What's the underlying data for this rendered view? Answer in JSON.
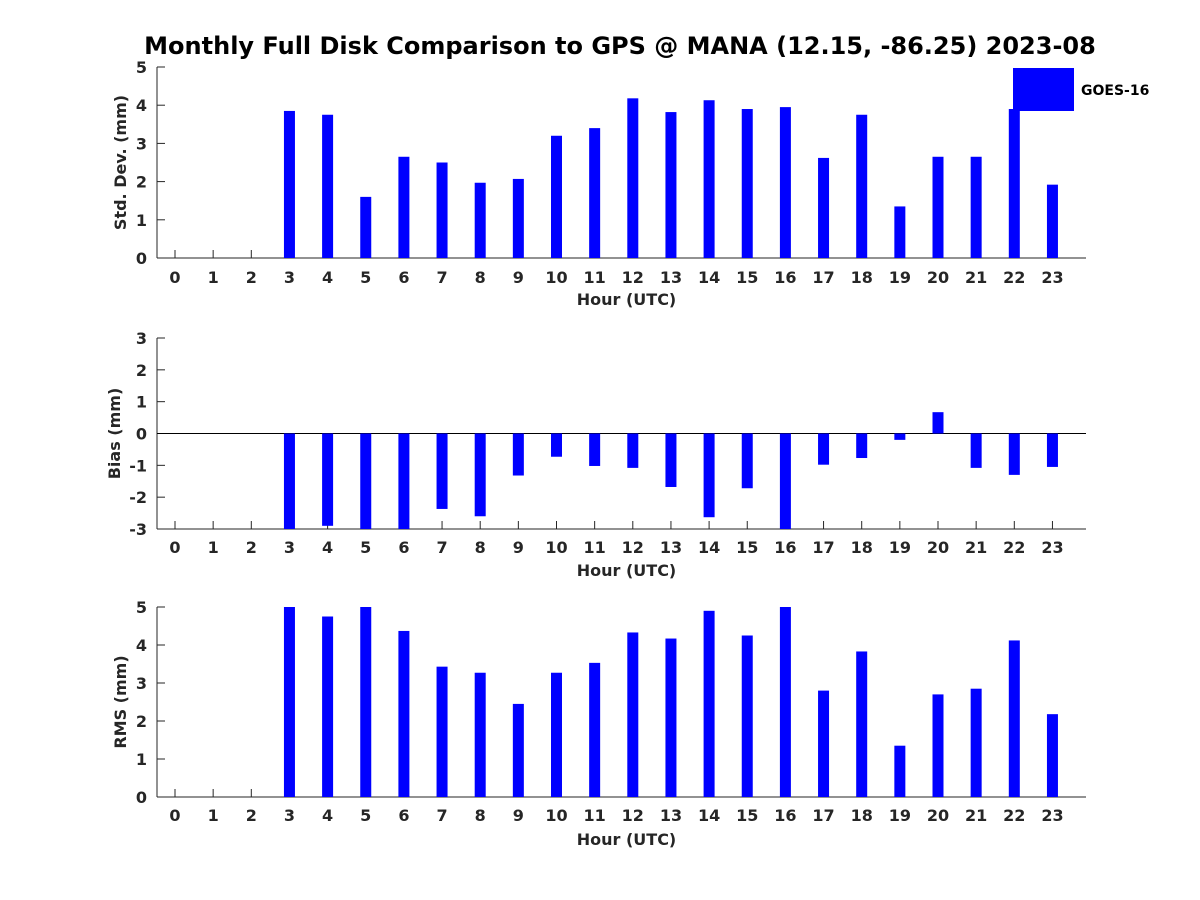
{
  "chart_data": {
    "title": "Monthly Full Disk Comparison to GPS @ MANA (12.15, -86.25) 2023-08",
    "legend": {
      "entries": [
        "GOES-16"
      ],
      "placement": "top-right"
    },
    "color": "#0000ff",
    "type": "bar",
    "panels": [
      {
        "type": "bar",
        "name": "std",
        "xlabel": "Hour (UTC)",
        "ylabel": "Std. Dev. (mm)",
        "ylim": [
          0,
          5
        ],
        "yticks": [
          "0",
          "1",
          "2",
          "3",
          "4",
          "5"
        ],
        "categories": [
          "0",
          "1",
          "2",
          "3",
          "4",
          "5",
          "6",
          "7",
          "8",
          "9",
          "10",
          "11",
          "12",
          "13",
          "14",
          "15",
          "16",
          "17",
          "18",
          "19",
          "20",
          "21",
          "22",
          "23"
        ],
        "series": [
          {
            "name": "GOES-16",
            "values": [
              null,
              null,
              null,
              3.85,
              3.75,
              1.6,
              2.65,
              2.5,
              1.97,
              2.07,
              3.2,
              3.4,
              4.18,
              3.82,
              4.13,
              3.9,
              3.95,
              2.62,
              3.75,
              1.35,
              2.65,
              2.65,
              3.9,
              1.92
            ]
          }
        ]
      },
      {
        "type": "bar",
        "name": "bias",
        "xlabel": "Hour (UTC)",
        "ylabel": "Bias (mm)",
        "ylim": [
          -3,
          3
        ],
        "yticks": [
          "-3",
          "-2",
          "-1",
          "0",
          "1",
          "2",
          "3"
        ],
        "zero_line": true,
        "categories": [
          "0",
          "1",
          "2",
          "3",
          "4",
          "5",
          "6",
          "7",
          "8",
          "9",
          "10",
          "11",
          "12",
          "13",
          "14",
          "15",
          "16",
          "17",
          "18",
          "19",
          "20",
          "21",
          "22",
          "23"
        ],
        "series": [
          {
            "name": "GOES-16",
            "values": [
              null,
              null,
              null,
              -3.0,
              -2.9,
              -3.0,
              -3.0,
              -2.37,
              -2.6,
              -1.32,
              -0.73,
              -1.02,
              -1.08,
              -1.68,
              -2.63,
              -1.72,
              -3.0,
              -0.98,
              -0.77,
              -0.2,
              0.67,
              -1.08,
              -1.3,
              -1.05
            ]
          }
        ]
      },
      {
        "type": "bar",
        "name": "rms",
        "xlabel": "Hour (UTC)",
        "ylabel": "RMS (mm)",
        "ylim": [
          0,
          5
        ],
        "yticks": [
          "0",
          "1",
          "2",
          "3",
          "4",
          "5"
        ],
        "categories": [
          "0",
          "1",
          "2",
          "3",
          "4",
          "5",
          "6",
          "7",
          "8",
          "9",
          "10",
          "11",
          "12",
          "13",
          "14",
          "15",
          "16",
          "17",
          "18",
          "19",
          "20",
          "21",
          "22",
          "23"
        ],
        "series": [
          {
            "name": "GOES-16",
            "values": [
              null,
              null,
              null,
              5.0,
              4.75,
              5.0,
              4.37,
              3.43,
              3.27,
              2.45,
              3.27,
              3.53,
              4.33,
              4.17,
              4.9,
              4.25,
              5.0,
              2.8,
              3.83,
              1.35,
              2.7,
              2.85,
              4.12,
              2.18
            ]
          }
        ]
      }
    ]
  }
}
